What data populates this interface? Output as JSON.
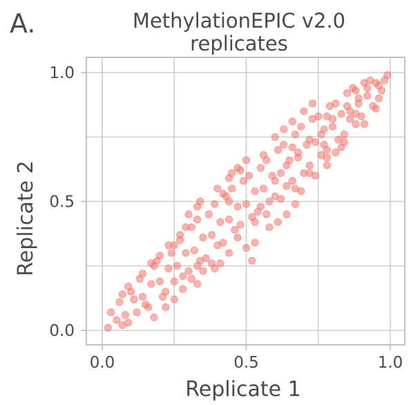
{
  "panel_label": "A.",
  "chart_data": {
    "type": "scatter",
    "title_lines": [
      "MethylationEPIC v2.0",
      "replicates"
    ],
    "xlabel": "Replicate 1",
    "ylabel": "Replicate 2",
    "xlim": [
      0.0,
      1.0
    ],
    "ylim": [
      0.0,
      1.0
    ],
    "xticks": [
      0.0,
      0.5,
      1.0
    ],
    "yticks": [
      0.0,
      0.5,
      1.0
    ],
    "xtick_labels": [
      "0.0",
      "0.5",
      "1.0"
    ],
    "ytick_labels": [
      "0.0",
      "0.5",
      "1.0"
    ],
    "gridlines": [
      0.0,
      0.25,
      0.5,
      0.75,
      1.0
    ],
    "grid": true,
    "legend": "none",
    "point_color": "#f4756c",
    "point_opacity": 0.55,
    "series": [
      {
        "points": [
          [
            0.02,
            0.01
          ],
          [
            0.05,
            0.04
          ],
          [
            0.08,
            0.06
          ],
          [
            0.11,
            0.12
          ],
          [
            0.14,
            0.13
          ],
          [
            0.17,
            0.18
          ],
          [
            0.2,
            0.19
          ],
          [
            0.23,
            0.24
          ],
          [
            0.26,
            0.25
          ],
          [
            0.29,
            0.3
          ],
          [
            0.32,
            0.31
          ],
          [
            0.35,
            0.36
          ],
          [
            0.38,
            0.37
          ],
          [
            0.41,
            0.42
          ],
          [
            0.44,
            0.43
          ],
          [
            0.47,
            0.48
          ],
          [
            0.5,
            0.49
          ],
          [
            0.53,
            0.54
          ],
          [
            0.56,
            0.55
          ],
          [
            0.59,
            0.6
          ],
          [
            0.62,
            0.61
          ],
          [
            0.65,
            0.66
          ],
          [
            0.68,
            0.67
          ],
          [
            0.71,
            0.72
          ],
          [
            0.74,
            0.73
          ],
          [
            0.77,
            0.78
          ],
          [
            0.8,
            0.79
          ],
          [
            0.83,
            0.84
          ],
          [
            0.86,
            0.85
          ],
          [
            0.89,
            0.9
          ],
          [
            0.92,
            0.91
          ],
          [
            0.95,
            0.96
          ],
          [
            0.98,
            0.97
          ],
          [
            0.99,
            0.99
          ],
          [
            0.06,
            0.11
          ],
          [
            0.09,
            0.03
          ],
          [
            0.13,
            0.2
          ],
          [
            0.16,
            0.09
          ],
          [
            0.19,
            0.27
          ],
          [
            0.22,
            0.15
          ],
          [
            0.25,
            0.33
          ],
          [
            0.28,
            0.21
          ],
          [
            0.31,
            0.4
          ],
          [
            0.34,
            0.27
          ],
          [
            0.37,
            0.45
          ],
          [
            0.4,
            0.33
          ],
          [
            0.43,
            0.52
          ],
          [
            0.46,
            0.39
          ],
          [
            0.49,
            0.58
          ],
          [
            0.52,
            0.44
          ],
          [
            0.55,
            0.63
          ],
          [
            0.58,
            0.5
          ],
          [
            0.61,
            0.7
          ],
          [
            0.64,
            0.56
          ],
          [
            0.67,
            0.76
          ],
          [
            0.7,
            0.61
          ],
          [
            0.73,
            0.82
          ],
          [
            0.76,
            0.68
          ],
          [
            0.79,
            0.87
          ],
          [
            0.82,
            0.74
          ],
          [
            0.85,
            0.92
          ],
          [
            0.88,
            0.8
          ],
          [
            0.91,
            0.96
          ],
          [
            0.94,
            0.87
          ],
          [
            0.09,
            0.17
          ],
          [
            0.12,
            0.07
          ],
          [
            0.18,
            0.25
          ],
          [
            0.21,
            0.13
          ],
          [
            0.27,
            0.35
          ],
          [
            0.3,
            0.23
          ],
          [
            0.33,
            0.43
          ],
          [
            0.36,
            0.28
          ],
          [
            0.39,
            0.49
          ],
          [
            0.42,
            0.34
          ],
          [
            0.45,
            0.55
          ],
          [
            0.48,
            0.41
          ],
          [
            0.51,
            0.6
          ],
          [
            0.54,
            0.46
          ],
          [
            0.57,
            0.66
          ],
          [
            0.6,
            0.52
          ],
          [
            0.63,
            0.72
          ],
          [
            0.66,
            0.58
          ],
          [
            0.69,
            0.79
          ],
          [
            0.72,
            0.64
          ],
          [
            0.75,
            0.83
          ],
          [
            0.78,
            0.7
          ],
          [
            0.81,
            0.88
          ],
          [
            0.84,
            0.76
          ],
          [
            0.87,
            0.94
          ],
          [
            0.9,
            0.83
          ],
          [
            0.93,
            0.97
          ],
          [
            0.96,
            0.9
          ],
          [
            0.03,
            0.07
          ],
          [
            0.07,
            0.02
          ],
          [
            0.1,
            0.15
          ],
          [
            0.15,
            0.1
          ],
          [
            0.24,
            0.3
          ],
          [
            0.33,
            0.25
          ],
          [
            0.44,
            0.5
          ],
          [
            0.55,
            0.48
          ],
          [
            0.66,
            0.71
          ],
          [
            0.77,
            0.72
          ],
          [
            0.88,
            0.93
          ],
          [
            0.97,
            0.93
          ],
          [
            0.25,
            0.19
          ],
          [
            0.27,
            0.37
          ],
          [
            0.29,
            0.4
          ],
          [
            0.33,
            0.48
          ],
          [
            0.34,
            0.5
          ],
          [
            0.3,
            0.45
          ],
          [
            0.33,
            0.18
          ],
          [
            0.39,
            0.24
          ],
          [
            0.41,
            0.26
          ],
          [
            0.42,
            0.53
          ],
          [
            0.45,
            0.61
          ],
          [
            0.48,
            0.62
          ],
          [
            0.52,
            0.27
          ],
          [
            0.5,
            0.32
          ],
          [
            0.53,
            0.34
          ],
          [
            0.56,
            0.68
          ],
          [
            0.6,
            0.75
          ],
          [
            0.63,
            0.78
          ],
          [
            0.66,
            0.81
          ],
          [
            0.7,
            0.85
          ],
          [
            0.73,
            0.88
          ],
          [
            0.58,
            0.4
          ],
          [
            0.61,
            0.42
          ],
          [
            0.64,
            0.45
          ],
          [
            0.67,
            0.49
          ],
          [
            0.69,
            0.54
          ],
          [
            0.74,
            0.6
          ],
          [
            0.78,
            0.64
          ],
          [
            0.81,
            0.69
          ],
          [
            0.84,
            0.73
          ],
          [
            0.86,
            0.82
          ],
          [
            0.78,
            0.83
          ],
          [
            0.88,
            0.84
          ],
          [
            0.07,
            0.14
          ],
          [
            0.14,
            0.22
          ],
          [
            0.17,
            0.26
          ],
          [
            0.2,
            0.29
          ],
          [
            0.23,
            0.33
          ],
          [
            0.4,
            0.55
          ],
          [
            0.44,
            0.59
          ],
          [
            0.47,
            0.63
          ],
          [
            0.5,
            0.66
          ],
          [
            0.18,
            0.05
          ],
          [
            0.22,
            0.09
          ],
          [
            0.25,
            0.12
          ],
          [
            0.28,
            0.16
          ],
          [
            0.31,
            0.2
          ],
          [
            0.35,
            0.23
          ],
          [
            0.38,
            0.26
          ],
          [
            0.44,
            0.3
          ],
          [
            0.47,
            0.36
          ],
          [
            0.53,
            0.42
          ],
          [
            0.57,
            0.45
          ],
          [
            0.62,
            0.51
          ],
          [
            0.67,
            0.55
          ],
          [
            0.72,
            0.61
          ],
          [
            0.78,
            0.67
          ],
          [
            0.83,
            0.71
          ],
          [
            0.91,
            0.8
          ],
          [
            0.95,
            0.86
          ],
          [
            0.6,
            0.58
          ],
          [
            0.64,
            0.64
          ],
          [
            0.68,
            0.69
          ],
          [
            0.72,
            0.74
          ],
          [
            0.76,
            0.76
          ],
          [
            0.8,
            0.82
          ],
          [
            0.85,
            0.87
          ],
          [
            0.89,
            0.88
          ],
          [
            0.92,
            0.94
          ],
          [
            0.96,
            0.95
          ]
        ]
      }
    ]
  }
}
